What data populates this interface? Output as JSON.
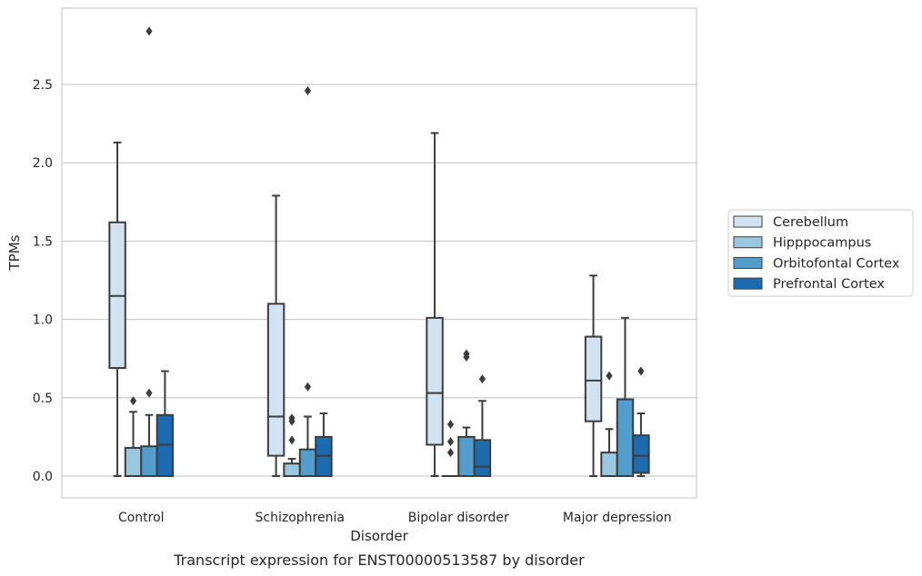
{
  "chart_data": {
    "type": "box",
    "caption": "Transcript expression for ENST00000513587 by disorder",
    "xlabel": "Disorder",
    "ylabel": "TPMs",
    "ylim": [
      -0.135,
      2.99
    ],
    "yticks": [
      "0.0",
      "0.5",
      "1.0",
      "1.5",
      "2.0",
      "2.5"
    ],
    "grid": "horizontal",
    "legend_position": "right",
    "categories": [
      "Control",
      "Schizophrenia",
      "Bipolar disorder",
      "Major depression"
    ],
    "series": [
      {
        "name": "Cerebellum",
        "color": "#d1e2f2",
        "boxes": [
          {
            "whislo": 0.0,
            "q1": 0.69,
            "med": 1.15,
            "q3": 1.62,
            "whishi": 2.13,
            "fliers": []
          },
          {
            "whislo": 0.0,
            "q1": 0.13,
            "med": 0.38,
            "q3": 1.1,
            "whishi": 1.79,
            "fliers": []
          },
          {
            "whislo": 0.0,
            "q1": 0.2,
            "med": 0.53,
            "q3": 1.01,
            "whishi": 2.19,
            "fliers": []
          },
          {
            "whislo": 0.0,
            "q1": 0.35,
            "med": 0.61,
            "q3": 0.89,
            "whishi": 1.28,
            "fliers": []
          }
        ]
      },
      {
        "name": "Hipppocampus",
        "color": "#9ac8e0",
        "boxes": [
          {
            "whislo": 0.0,
            "q1": 0.0,
            "med": 0.0,
            "q3": 0.18,
            "whishi": 0.41,
            "fliers": [
              0.48
            ]
          },
          {
            "whislo": 0.0,
            "q1": 0.0,
            "med": 0.0,
            "q3": 0.08,
            "whishi": 0.11,
            "fliers": [
              0.23,
              0.35,
              0.37
            ]
          },
          {
            "whislo": 0.0,
            "q1": 0.0,
            "med": 0.0,
            "q3": 0.0,
            "whishi": 0.0,
            "fliers": [
              0.15,
              0.22,
              0.33
            ]
          },
          {
            "whislo": 0.0,
            "q1": 0.0,
            "med": 0.0,
            "q3": 0.15,
            "whishi": 0.3,
            "fliers": [
              0.64
            ]
          }
        ]
      },
      {
        "name": "Orbitofontal Cortex",
        "color": "#529dcc",
        "boxes": [
          {
            "whislo": 0.0,
            "q1": 0.0,
            "med": 0.0,
            "q3": 0.19,
            "whishi": 0.39,
            "fliers": [
              0.53,
              2.84
            ]
          },
          {
            "whislo": 0.0,
            "q1": 0.0,
            "med": 0.0,
            "q3": 0.17,
            "whishi": 0.38,
            "fliers": [
              0.57,
              2.46
            ]
          },
          {
            "whislo": 0.0,
            "q1": 0.0,
            "med": 0.0,
            "q3": 0.25,
            "whishi": 0.31,
            "fliers": [
              0.76,
              0.78
            ]
          },
          {
            "whislo": 0.0,
            "q1": 0.0,
            "med": 0.0,
            "q3": 0.49,
            "whishi": 1.01,
            "fliers": []
          }
        ]
      },
      {
        "name": "Prefrontal Cortex",
        "color": "#1c6aaf",
        "boxes": [
          {
            "whislo": 0.0,
            "q1": 0.0,
            "med": 0.2,
            "q3": 0.39,
            "whishi": 0.67,
            "fliers": []
          },
          {
            "whislo": 0.0,
            "q1": 0.0,
            "med": 0.13,
            "q3": 0.25,
            "whishi": 0.4,
            "fliers": []
          },
          {
            "whislo": 0.0,
            "q1": 0.0,
            "med": 0.06,
            "q3": 0.23,
            "whishi": 0.48,
            "fliers": [
              0.62
            ]
          },
          {
            "whislo": 0.0,
            "q1": 0.02,
            "med": 0.13,
            "q3": 0.26,
            "whishi": 0.4,
            "fliers": [
              0.67
            ]
          }
        ]
      }
    ]
  }
}
